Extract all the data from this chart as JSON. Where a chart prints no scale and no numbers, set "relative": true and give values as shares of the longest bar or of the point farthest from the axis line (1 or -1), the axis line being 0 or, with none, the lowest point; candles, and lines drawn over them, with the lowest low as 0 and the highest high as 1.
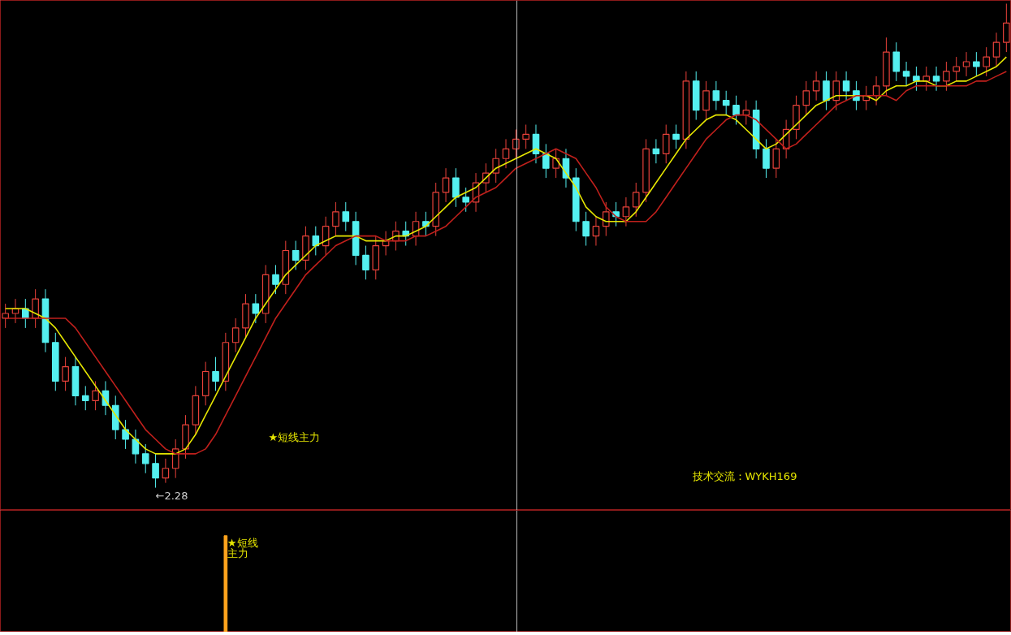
{
  "chart_data": [
    {
      "type": "candlestick",
      "relative": true,
      "tick_labels": false,
      "categories": [
        null,
        null,
        null,
        null,
        null,
        null,
        null,
        null,
        null,
        null,
        null,
        null,
        null,
        null,
        null,
        null,
        null,
        null,
        null,
        null,
        null,
        null,
        null,
        null,
        null,
        null,
        null,
        null,
        null,
        null,
        null,
        null,
        null,
        null,
        null,
        null,
        null,
        null,
        null,
        null,
        null,
        null,
        null,
        null,
        null,
        null,
        null,
        null,
        null,
        null,
        null,
        null,
        null,
        null,
        null,
        null,
        null,
        null,
        null,
        null,
        null,
        null,
        null,
        null,
        null,
        null,
        null,
        null,
        null,
        null,
        null,
        null,
        null,
        null,
        null,
        null,
        null,
        null,
        null,
        null,
        null,
        null,
        null,
        null,
        null,
        null,
        null,
        null,
        null,
        null,
        null,
        null,
        null,
        null,
        null,
        null,
        null,
        null,
        null,
        null,
        null
      ],
      "ohlc": [
        [
          0.35,
          0.38,
          0.33,
          0.36
        ],
        [
          0.36,
          0.39,
          0.34,
          0.37
        ],
        [
          0.37,
          0.39,
          0.33,
          0.35
        ],
        [
          0.35,
          0.41,
          0.33,
          0.39
        ],
        [
          0.39,
          0.41,
          0.28,
          0.3
        ],
        [
          0.3,
          0.32,
          0.2,
          0.22
        ],
        [
          0.22,
          0.27,
          0.2,
          0.25
        ],
        [
          0.25,
          0.27,
          0.17,
          0.19
        ],
        [
          0.19,
          0.21,
          0.16,
          0.18
        ],
        [
          0.18,
          0.22,
          0.16,
          0.2
        ],
        [
          0.2,
          0.22,
          0.15,
          0.17
        ],
        [
          0.17,
          0.19,
          0.1,
          0.12
        ],
        [
          0.12,
          0.14,
          0.08,
          0.1
        ],
        [
          0.1,
          0.12,
          0.05,
          0.07
        ],
        [
          0.07,
          0.09,
          0.03,
          0.05
        ],
        [
          0.05,
          0.07,
          0,
          0.02
        ],
        [
          0.02,
          0.06,
          0.01,
          0.04
        ],
        [
          0.04,
          0.1,
          0.02,
          0.08
        ],
        [
          0.08,
          0.15,
          0.06,
          0.13
        ],
        [
          0.13,
          0.21,
          0.11,
          0.19
        ],
        [
          0.19,
          0.26,
          0.17,
          0.24
        ],
        [
          0.24,
          0.27,
          0.2,
          0.22
        ],
        [
          0.22,
          0.32,
          0.2,
          0.3
        ],
        [
          0.3,
          0.35,
          0.28,
          0.33
        ],
        [
          0.33,
          0.4,
          0.31,
          0.38
        ],
        [
          0.38,
          0.4,
          0.34,
          0.36
        ],
        [
          0.36,
          0.46,
          0.34,
          0.44
        ],
        [
          0.44,
          0.46,
          0.4,
          0.42
        ],
        [
          0.42,
          0.51,
          0.4,
          0.49
        ],
        [
          0.49,
          0.51,
          0.45,
          0.47
        ],
        [
          0.47,
          0.54,
          0.45,
          0.52
        ],
        [
          0.52,
          0.54,
          0.48,
          0.5
        ],
        [
          0.5,
          0.56,
          0.48,
          0.54
        ],
        [
          0.54,
          0.59,
          0.52,
          0.57
        ],
        [
          0.57,
          0.59,
          0.53,
          0.55
        ],
        [
          0.55,
          0.57,
          0.46,
          0.48
        ],
        [
          0.48,
          0.5,
          0.43,
          0.45
        ],
        [
          0.45,
          0.52,
          0.43,
          0.5
        ],
        [
          0.5,
          0.53,
          0.48,
          0.51
        ],
        [
          0.51,
          0.55,
          0.49,
          0.53
        ],
        [
          0.53,
          0.55,
          0.5,
          0.52
        ],
        [
          0.52,
          0.57,
          0.5,
          0.55
        ],
        [
          0.55,
          0.57,
          0.52,
          0.54
        ],
        [
          0.54,
          0.63,
          0.52,
          0.61
        ],
        [
          0.61,
          0.66,
          0.59,
          0.64
        ],
        [
          0.64,
          0.66,
          0.58,
          0.6
        ],
        [
          0.6,
          0.62,
          0.57,
          0.59
        ],
        [
          0.59,
          0.65,
          0.57,
          0.63
        ],
        [
          0.63,
          0.67,
          0.61,
          0.65
        ],
        [
          0.65,
          0.7,
          0.63,
          0.68
        ],
        [
          0.68,
          0.72,
          0.66,
          0.7
        ],
        [
          0.7,
          0.74,
          0.68,
          0.72
        ],
        [
          0.72,
          0.75,
          0.7,
          0.73
        ],
        [
          0.73,
          0.75,
          0.67,
          0.69
        ],
        [
          0.69,
          0.71,
          0.64,
          0.66
        ],
        [
          0.66,
          0.7,
          0.64,
          0.68
        ],
        [
          0.68,
          0.7,
          0.62,
          0.64
        ],
        [
          0.64,
          0.66,
          0.53,
          0.55
        ],
        [
          0.55,
          0.57,
          0.5,
          0.52
        ],
        [
          0.52,
          0.56,
          0.5,
          0.54
        ],
        [
          0.54,
          0.59,
          0.52,
          0.57
        ],
        [
          0.57,
          0.59,
          0.54,
          0.56
        ],
        [
          0.56,
          0.6,
          0.54,
          0.58
        ],
        [
          0.58,
          0.63,
          0.56,
          0.61
        ],
        [
          0.61,
          0.72,
          0.59,
          0.7
        ],
        [
          0.7,
          0.72,
          0.67,
          0.69
        ],
        [
          0.69,
          0.75,
          0.67,
          0.73
        ],
        [
          0.73,
          0.75,
          0.7,
          0.72
        ],
        [
          0.72,
          0.86,
          0.7,
          0.84
        ],
        [
          0.84,
          0.86,
          0.76,
          0.78
        ],
        [
          0.78,
          0.84,
          0.76,
          0.82
        ],
        [
          0.82,
          0.84,
          0.78,
          0.8
        ],
        [
          0.8,
          0.82,
          0.77,
          0.79
        ],
        [
          0.79,
          0.81,
          0.75,
          0.77
        ],
        [
          0.77,
          0.8,
          0.75,
          0.78
        ],
        [
          0.78,
          0.8,
          0.68,
          0.7
        ],
        [
          0.7,
          0.72,
          0.64,
          0.66
        ],
        [
          0.66,
          0.72,
          0.64,
          0.7
        ],
        [
          0.7,
          0.76,
          0.68,
          0.74
        ],
        [
          0.74,
          0.81,
          0.72,
          0.79
        ],
        [
          0.79,
          0.84,
          0.77,
          0.82
        ],
        [
          0.82,
          0.86,
          0.8,
          0.84
        ],
        [
          0.84,
          0.86,
          0.78,
          0.8
        ],
        [
          0.8,
          0.86,
          0.78,
          0.84
        ],
        [
          0.84,
          0.86,
          0.8,
          0.82
        ],
        [
          0.82,
          0.84,
          0.78,
          0.8
        ],
        [
          0.8,
          0.83,
          0.78,
          0.81
        ],
        [
          0.81,
          0.85,
          0.79,
          0.83
        ],
        [
          0.83,
          0.93,
          0.81,
          0.9
        ],
        [
          0.9,
          0.92,
          0.84,
          0.86
        ],
        [
          0.86,
          0.88,
          0.83,
          0.85
        ],
        [
          0.85,
          0.87,
          0.82,
          0.84
        ],
        [
          0.84,
          0.87,
          0.82,
          0.85
        ],
        [
          0.85,
          0.87,
          0.82,
          0.84
        ],
        [
          0.84,
          0.88,
          0.82,
          0.86
        ],
        [
          0.86,
          0.89,
          0.84,
          0.87
        ],
        [
          0.87,
          0.9,
          0.85,
          0.88
        ],
        [
          0.88,
          0.9,
          0.85,
          0.87
        ],
        [
          0.87,
          0.91,
          0.85,
          0.89
        ],
        [
          0.89,
          0.94,
          0.87,
          0.92
        ],
        [
          0.92,
          1,
          0.9,
          0.96
        ]
      ],
      "series": [
        {
          "type": "line",
          "color": "#e6e600",
          "values": [
            0.37,
            0.37,
            0.37,
            0.36,
            0.35,
            0.33,
            0.3,
            0.27,
            0.24,
            0.21,
            0.18,
            0.15,
            0.12,
            0.1,
            0.08,
            0.07,
            0.07,
            0.07,
            0.08,
            0.11,
            0.15,
            0.19,
            0.23,
            0.27,
            0.31,
            0.35,
            0.38,
            0.41,
            0.44,
            0.46,
            0.48,
            0.5,
            0.51,
            0.52,
            0.52,
            0.52,
            0.51,
            0.51,
            0.51,
            0.52,
            0.52,
            0.53,
            0.54,
            0.56,
            0.58,
            0.6,
            0.61,
            0.62,
            0.64,
            0.66,
            0.67,
            0.68,
            0.69,
            0.7,
            0.69,
            0.68,
            0.65,
            0.62,
            0.58,
            0.56,
            0.55,
            0.55,
            0.55,
            0.57,
            0.6,
            0.63,
            0.66,
            0.69,
            0.72,
            0.74,
            0.76,
            0.77,
            0.77,
            0.76,
            0.74,
            0.72,
            0.7,
            0.71,
            0.73,
            0.75,
            0.77,
            0.79,
            0.8,
            0.81,
            0.81,
            0.81,
            0.81,
            0.8,
            0.82,
            0.83,
            0.83,
            0.84,
            0.84,
            0.83,
            0.83,
            0.84,
            0.84,
            0.85,
            0.86,
            0.87,
            0.89
          ]
        },
        {
          "type": "line",
          "color": "#c0201c",
          "values": [
            0.35,
            0.35,
            0.35,
            0.35,
            0.35,
            0.35,
            0.35,
            0.33,
            0.3,
            0.27,
            0.24,
            0.21,
            0.18,
            0.15,
            0.12,
            0.1,
            0.08,
            0.07,
            0.07,
            0.07,
            0.08,
            0.11,
            0.15,
            0.19,
            0.23,
            0.27,
            0.31,
            0.35,
            0.38,
            0.41,
            0.44,
            0.46,
            0.48,
            0.5,
            0.51,
            0.52,
            0.52,
            0.52,
            0.51,
            0.51,
            0.51,
            0.52,
            0.52,
            0.53,
            0.54,
            0.56,
            0.58,
            0.6,
            0.61,
            0.62,
            0.64,
            0.66,
            0.67,
            0.68,
            0.69,
            0.7,
            0.69,
            0.68,
            0.65,
            0.62,
            0.58,
            0.56,
            0.55,
            0.55,
            0.55,
            0.57,
            0.6,
            0.63,
            0.66,
            0.69,
            0.72,
            0.74,
            0.76,
            0.77,
            0.77,
            0.76,
            0.74,
            0.72,
            0.7,
            0.71,
            0.73,
            0.75,
            0.77,
            0.79,
            0.8,
            0.81,
            0.81,
            0.81,
            0.81,
            0.8,
            0.82,
            0.83,
            0.83,
            0.83,
            0.83,
            0.83,
            0.83,
            0.84,
            0.84,
            0.85,
            0.86
          ]
        }
      ],
      "annotations": [
        "★短线主力",
        "←2.28",
        "技术交流：WYKH169"
      ]
    },
    {
      "type": "bar",
      "relative": true,
      "tick_labels": false,
      "color": "#ffa41c",
      "categories": [
        null,
        null,
        null,
        null,
        null,
        null,
        null,
        null,
        null,
        null,
        null,
        null,
        null,
        null,
        null,
        null,
        null,
        null,
        null,
        null,
        null,
        null,
        null,
        null,
        null,
        null,
        null,
        null,
        null,
        null,
        null,
        null,
        null,
        null,
        null,
        null,
        null,
        null,
        null,
        null,
        null,
        null,
        null,
        null,
        null,
        null,
        null,
        null,
        null,
        null,
        null,
        null,
        null,
        null,
        null,
        null,
        null,
        null,
        null,
        null,
        null,
        null,
        null,
        null,
        null,
        null,
        null,
        null,
        null,
        null,
        null,
        null,
        null,
        null,
        null,
        null,
        null,
        null,
        null,
        null,
        null,
        null,
        null,
        null,
        null,
        null,
        null,
        null,
        null,
        null,
        null,
        null,
        null,
        null,
        null,
        null,
        null,
        null,
        null,
        null,
        null
      ],
      "values": [
        null,
        null,
        null,
        null,
        null,
        null,
        null,
        null,
        null,
        null,
        null,
        null,
        null,
        null,
        null,
        null,
        null,
        null,
        null,
        null,
        null,
        null,
        1,
        null,
        null,
        null,
        null,
        null,
        null,
        null,
        null,
        null,
        null,
        null,
        null,
        null,
        null,
        null,
        null,
        null,
        null,
        null,
        null,
        null,
        null,
        null,
        null,
        null,
        null,
        null,
        null,
        null,
        null,
        null,
        null,
        null,
        null,
        null,
        null,
        null,
        null,
        null,
        null,
        null,
        null,
        null,
        null,
        null,
        null,
        null,
        null,
        null,
        null,
        null,
        null,
        null,
        null,
        null,
        null,
        null,
        null,
        null,
        null,
        null,
        null,
        null,
        null,
        null,
        null,
        null,
        null,
        null,
        null,
        null,
        null,
        null,
        null,
        null,
        null,
        null,
        null
      ],
      "annotations": [
        "★短线主力"
      ]
    }
  ]
}
